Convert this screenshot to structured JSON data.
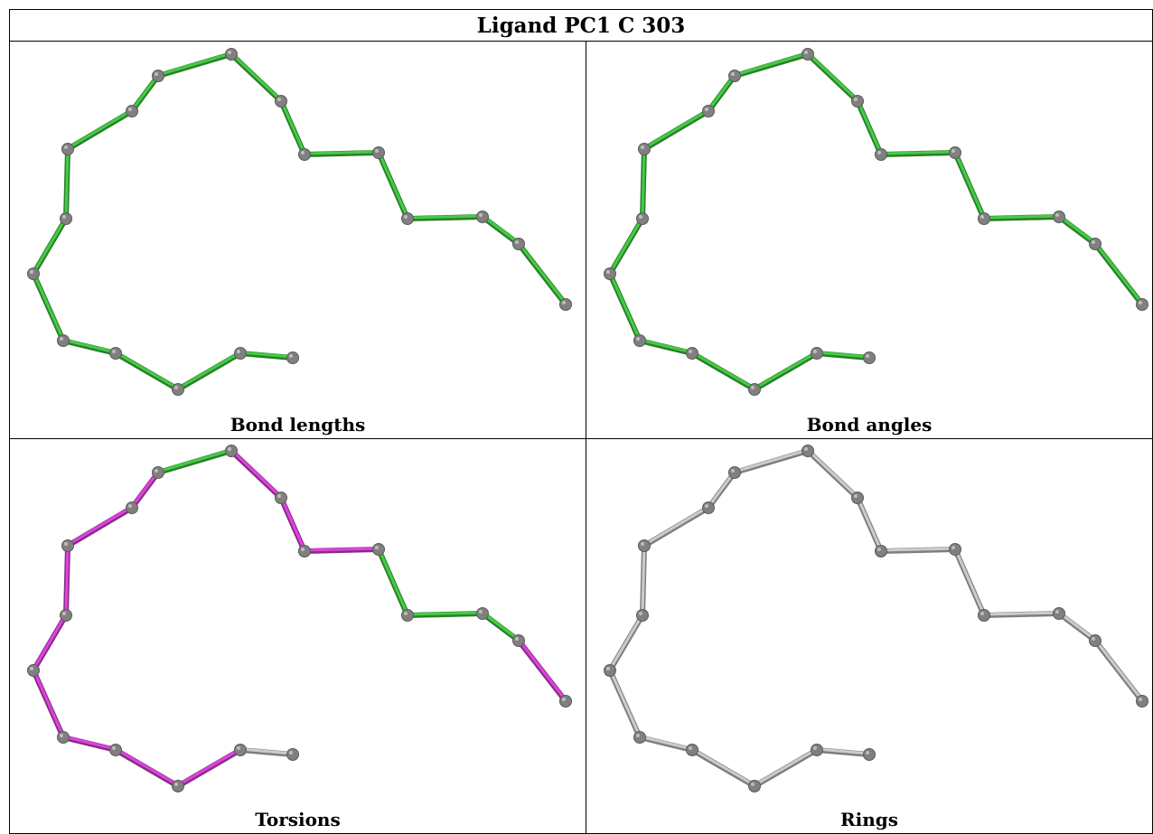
{
  "title": "Ligand PC1 C 303",
  "panels": [
    {
      "caption": "Bond lengths",
      "bond_colors": [
        "#44cc44",
        "#44cc44",
        "#44cc44",
        "#44cc44",
        "#44cc44",
        "#44cc44",
        "#44cc44",
        "#44cc44",
        "#44cc44",
        "#44cc44",
        "#44cc44",
        "#44cc44",
        "#44cc44",
        "#44cc44",
        "#44cc44",
        "#44cc44",
        "#44cc44",
        "#44cc44",
        "#44cc44",
        "#44cc44"
      ]
    },
    {
      "caption": "Bond angles",
      "bond_colors": [
        "#44cc44",
        "#44cc44",
        "#44cc44",
        "#44cc44",
        "#44cc44",
        "#44cc44",
        "#44cc44",
        "#44cc44",
        "#44cc44",
        "#44cc44",
        "#44cc44",
        "#44cc44",
        "#44cc44",
        "#44cc44",
        "#44cc44",
        "#44cc44",
        "#44cc44",
        "#44cc44",
        "#44cc44",
        "#44cc44"
      ]
    },
    {
      "caption": "Torsions",
      "bond_colors": [
        "#cccccc",
        "#dd44dd",
        "#dd44dd",
        "#dd44dd",
        "#dd44dd",
        "#dd44dd",
        "#dd44dd",
        "#dd44dd",
        "#dd44dd",
        "#44cc44",
        "#dd44dd",
        "#dd44dd",
        "#dd44dd",
        "#44cc44",
        "#44cc44",
        "#44cc44",
        "#dd44dd",
        "#dd44dd",
        "#dd44dd",
        "#cccccc"
      ]
    },
    {
      "caption": "Rings",
      "bond_colors": [
        "#cccccc",
        "#cccccc",
        "#cccccc",
        "#cccccc",
        "#cccccc",
        "#cccccc",
        "#cccccc",
        "#cccccc",
        "#cccccc",
        "#cccccc",
        "#cccccc",
        "#cccccc",
        "#cccccc",
        "#cccccc",
        "#cccccc",
        "#cccccc",
        "#cccccc",
        "#cccccc",
        "#cccccc",
        "#cccccc"
      ]
    }
  ],
  "atom_color": "#808080"
}
